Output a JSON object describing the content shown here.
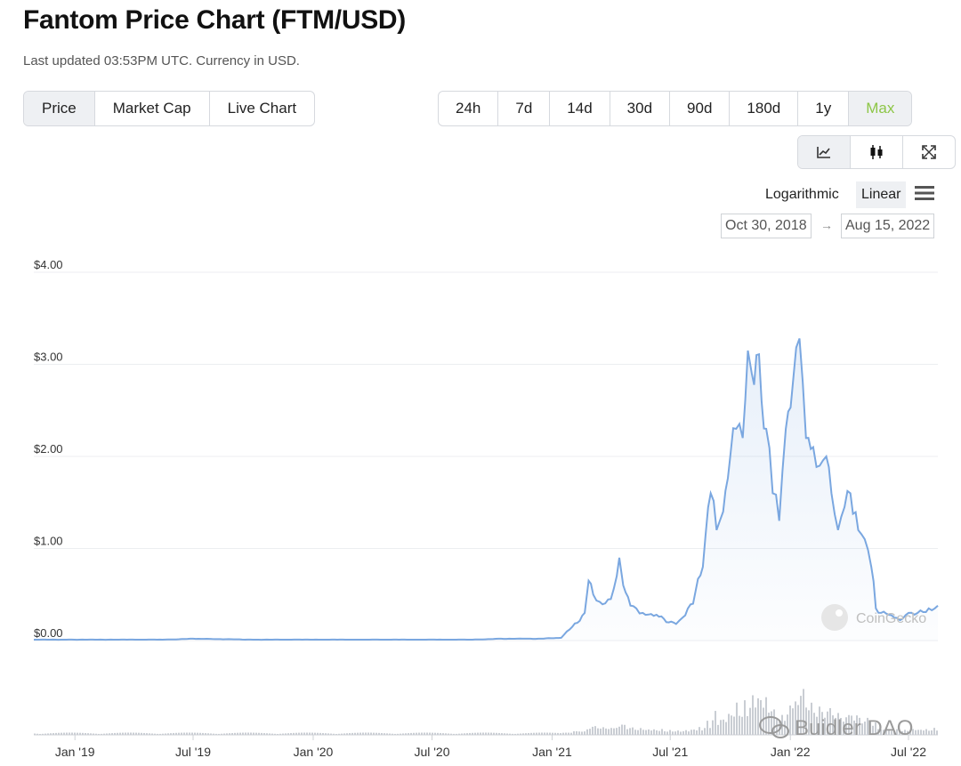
{
  "header": {
    "title": "Fantom Price Chart (FTM/USD)",
    "subtitle": "Last updated 03:53PM UTC. Currency in USD."
  },
  "view_tabs": [
    {
      "label": "Price",
      "active": true
    },
    {
      "label": "Market Cap",
      "active": false
    },
    {
      "label": "Live Chart",
      "active": false
    }
  ],
  "range_tabs": [
    {
      "label": "24h",
      "active": false
    },
    {
      "label": "7d",
      "active": false
    },
    {
      "label": "14d",
      "active": false
    },
    {
      "label": "30d",
      "active": false
    },
    {
      "label": "90d",
      "active": false
    },
    {
      "label": "180d",
      "active": false
    },
    {
      "label": "1y",
      "active": false
    },
    {
      "label": "Max",
      "active": true
    }
  ],
  "chart_type_buttons": [
    {
      "icon": "line-chart-icon",
      "active": true
    },
    {
      "icon": "candlestick-icon",
      "active": false
    },
    {
      "icon": "fullscreen-icon",
      "active": false
    }
  ],
  "scale": {
    "log_label": "Logarithmic",
    "linear_label": "Linear",
    "selected": "Linear"
  },
  "date_range": {
    "from": "Oct 30, 2018",
    "arrow": "→",
    "to": "Aug 15, 2022"
  },
  "watermarks": {
    "coingecko": "CoinGecko",
    "builder": "Buidler DAO"
  },
  "colors": {
    "line": "#7aa7e0",
    "accent_active": "#8dc647",
    "volume": "#c9cdd3"
  },
  "chart_data": {
    "type": "line",
    "title": "",
    "xlabel": "",
    "ylabel": "",
    "ylim": [
      0,
      4
    ],
    "y_ticks": [
      {
        "value": 0,
        "label": "$0.00"
      },
      {
        "value": 1,
        "label": "$1.00"
      },
      {
        "value": 2,
        "label": "$2.00"
      },
      {
        "value": 3,
        "label": "$3.00"
      },
      {
        "value": 4,
        "label": "$4.00"
      }
    ],
    "x_ticks": [
      {
        "date": "2019-01-01",
        "label": "Jan '19"
      },
      {
        "date": "2019-07-01",
        "label": "Jul '19"
      },
      {
        "date": "2020-01-01",
        "label": "Jan '20"
      },
      {
        "date": "2020-07-01",
        "label": "Jul '20"
      },
      {
        "date": "2021-01-01",
        "label": "Jan '21"
      },
      {
        "date": "2021-07-01",
        "label": "Jul '21"
      },
      {
        "date": "2022-01-01",
        "label": "Jan '22"
      },
      {
        "date": "2022-07-01",
        "label": "Jul '22"
      }
    ],
    "series": [
      {
        "x": [
          "2018-10-30",
          "2018-12-15",
          "2019-03-01",
          "2019-05-15",
          "2019-07-01",
          "2019-10-01",
          "2020-01-01",
          "2020-03-15",
          "2020-06-01",
          "2020-09-01",
          "2020-10-15",
          "2020-12-15",
          "2021-01-15",
          "2021-02-01",
          "2021-02-20",
          "2021-02-26",
          "2021-03-05",
          "2021-03-15",
          "2021-04-01",
          "2021-04-10",
          "2021-04-14",
          "2021-04-20",
          "2021-05-01",
          "2021-05-10",
          "2021-05-20",
          "2021-06-10",
          "2021-06-25",
          "2021-07-10",
          "2021-07-20",
          "2021-08-05",
          "2021-08-20",
          "2021-09-01",
          "2021-09-10",
          "2021-09-20",
          "2021-10-01",
          "2021-10-10",
          "2021-10-20",
          "2021-10-28",
          "2021-11-03",
          "2021-11-10",
          "2021-11-18",
          "2021-11-25",
          "2021-12-05",
          "2021-12-15",
          "2021-12-25",
          "2022-01-05",
          "2022-01-15",
          "2022-01-20",
          "2022-01-25",
          "2022-02-05",
          "2022-02-15",
          "2022-02-25",
          "2022-03-05",
          "2022-03-15",
          "2022-03-25",
          "2022-04-03",
          "2022-04-15",
          "2022-04-25",
          "2022-05-05",
          "2022-05-12",
          "2022-05-20",
          "2022-06-01",
          "2022-06-18",
          "2022-07-01",
          "2022-07-15",
          "2022-08-01",
          "2022-08-15"
        ],
        "values": [
          0.01,
          0.01,
          0.01,
          0.01,
          0.02,
          0.01,
          0.01,
          0.01,
          0.01,
          0.01,
          0.02,
          0.02,
          0.03,
          0.15,
          0.3,
          0.65,
          0.5,
          0.42,
          0.45,
          0.7,
          0.9,
          0.6,
          0.38,
          0.35,
          0.3,
          0.28,
          0.2,
          0.18,
          0.25,
          0.4,
          0.8,
          1.6,
          1.2,
          1.4,
          2.0,
          2.3,
          2.2,
          3.15,
          2.9,
          3.1,
          2.6,
          2.3,
          1.6,
          1.3,
          2.3,
          2.8,
          3.28,
          2.8,
          2.2,
          2.1,
          1.9,
          2.0,
          1.6,
          1.2,
          1.45,
          1.6,
          1.2,
          1.1,
          0.8,
          0.35,
          0.3,
          0.28,
          0.22,
          0.3,
          0.3,
          0.35,
          0.38
        ]
      }
    ],
    "grid": true
  }
}
